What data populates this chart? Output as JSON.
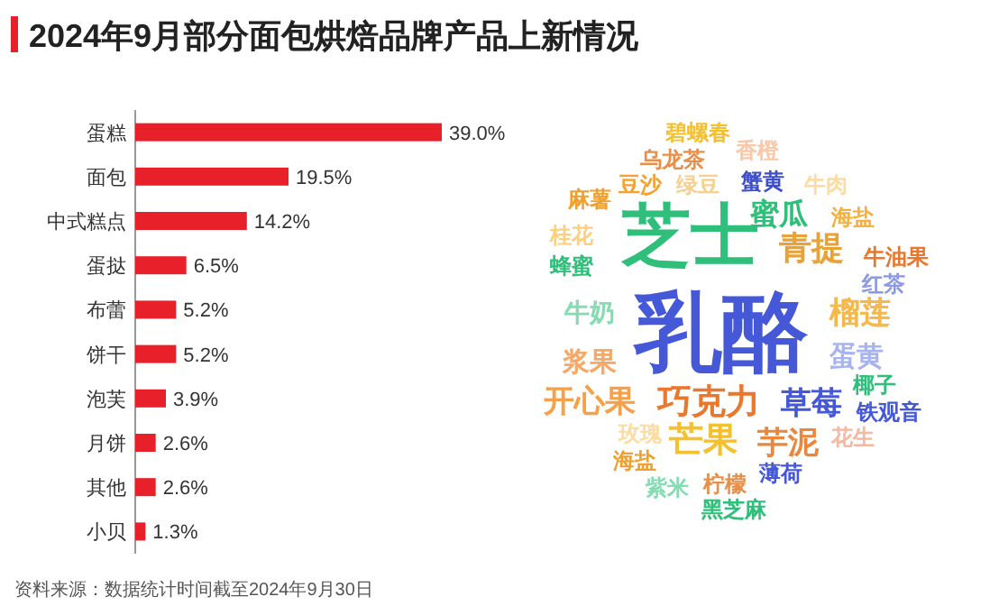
{
  "chart_data": [
    {
      "type": "bar",
      "orientation": "horizontal",
      "title": "2024年9月部分面包烘焙品牌产品上新情况",
      "categories": [
        "蛋糕",
        "面包",
        "中式糕点",
        "蛋挞",
        "布蕾",
        "饼干",
        "泡芙",
        "月饼",
        "其他",
        "小贝"
      ],
      "values": [
        39.0,
        19.5,
        14.2,
        6.5,
        5.2,
        5.2,
        3.9,
        2.6,
        2.6,
        1.3
      ],
      "value_labels": [
        "39.0%",
        "19.5%",
        "14.2%",
        "6.5%",
        "5.2%",
        "5.2%",
        "3.9%",
        "2.6%",
        "2.6%",
        "1.3%"
      ],
      "color": "#e8202a",
      "annotations": [
        "资料来源：数据统计时间截至2024年9月30日"
      ]
    },
    {
      "type": "other",
      "annotations": [
        "乳酪",
        "芝士",
        "巧克力",
        "芒果",
        "青提",
        "蜜瓜",
        "草莓",
        "开心果",
        "芋泥",
        "榴莲",
        "蛋黄",
        "浆果",
        "牛奶",
        "碧螺春",
        "乌龙茶",
        "香橙",
        "豆沙",
        "绿豆",
        "蟹黄",
        "牛肉",
        "麻薯",
        "海盐",
        "桂花",
        "蜂蜜",
        "牛油果",
        "红茶",
        "椰子",
        "铁观音",
        "玫瑰",
        "花生",
        "海盐",
        "薄荷",
        "紫米",
        "柠檬",
        "黑芝麻"
      ]
    }
  ]
}
